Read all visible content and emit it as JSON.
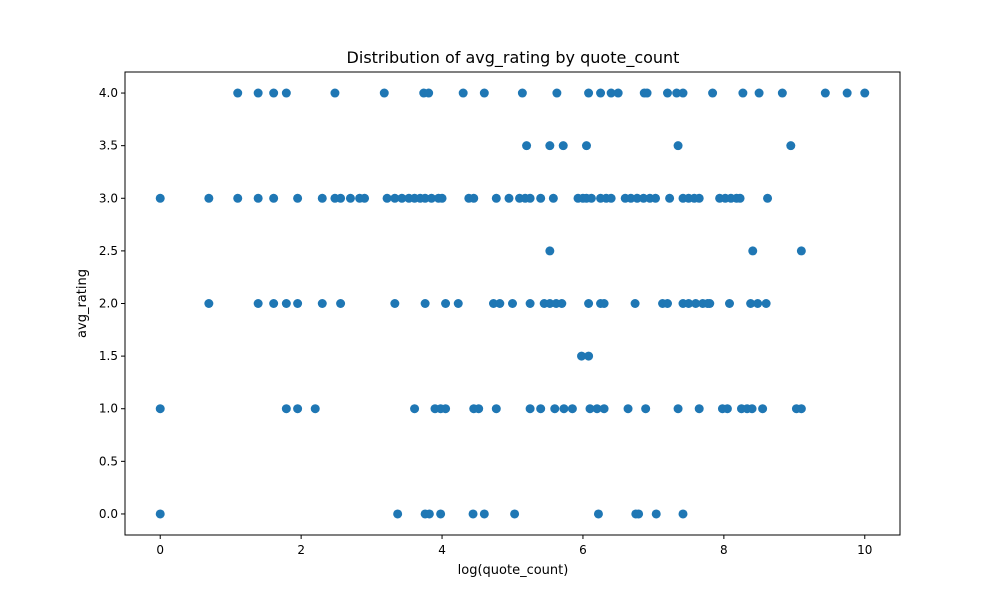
{
  "chart_data": {
    "type": "scatter",
    "title": "Distribution of avg_rating by quote_count",
    "xlabel": "log(quote_count)",
    "ylabel": "avg_rating",
    "xlim": [
      -0.5,
      10.5
    ],
    "ylim": [
      -0.2,
      4.2
    ],
    "x_ticks": [
      0,
      2,
      4,
      6,
      8,
      10
    ],
    "x_tick_labels": [
      "0",
      "2",
      "4",
      "6",
      "8",
      "10"
    ],
    "y_ticks": [
      0.0,
      0.5,
      1.0,
      1.5,
      2.0,
      2.5,
      3.0,
      3.5,
      4.0
    ],
    "y_tick_labels": [
      "0.0",
      "0.5",
      "1.0",
      "1.5",
      "2.0",
      "2.5",
      "3.0",
      "3.5",
      "4.0"
    ],
    "grid": false,
    "marker_color": "#1f77b4",
    "points": [
      [
        1.1,
        4
      ],
      [
        1.39,
        4
      ],
      [
        1.61,
        4
      ],
      [
        1.79,
        4
      ],
      [
        2.48,
        4
      ],
      [
        3.18,
        4
      ],
      [
        3.74,
        4
      ],
      [
        3.81,
        4
      ],
      [
        4.3,
        4
      ],
      [
        4.6,
        4
      ],
      [
        5.14,
        4
      ],
      [
        5.63,
        4
      ],
      [
        6.08,
        4
      ],
      [
        6.25,
        4
      ],
      [
        6.4,
        4
      ],
      [
        6.5,
        4
      ],
      [
        6.87,
        4
      ],
      [
        6.91,
        4
      ],
      [
        7.2,
        4
      ],
      [
        7.33,
        4
      ],
      [
        7.42,
        4
      ],
      [
        7.84,
        4
      ],
      [
        8.27,
        4
      ],
      [
        8.5,
        4
      ],
      [
        8.83,
        4
      ],
      [
        9.44,
        4
      ],
      [
        9.75,
        4
      ],
      [
        10.0,
        4
      ],
      [
        5.2,
        3.5
      ],
      [
        5.53,
        3.5
      ],
      [
        5.72,
        3.5
      ],
      [
        6.05,
        3.5
      ],
      [
        7.35,
        3.5
      ],
      [
        8.95,
        3.5
      ],
      [
        0,
        3
      ],
      [
        0.69,
        3
      ],
      [
        1.1,
        3
      ],
      [
        1.39,
        3
      ],
      [
        1.61,
        3
      ],
      [
        1.95,
        3
      ],
      [
        2.3,
        3
      ],
      [
        2.48,
        3
      ],
      [
        2.56,
        3
      ],
      [
        2.7,
        3
      ],
      [
        2.83,
        3
      ],
      [
        2.9,
        3
      ],
      [
        3.22,
        3
      ],
      [
        3.33,
        3
      ],
      [
        3.43,
        3
      ],
      [
        3.53,
        3
      ],
      [
        3.61,
        3
      ],
      [
        3.69,
        3
      ],
      [
        3.76,
        3
      ],
      [
        3.85,
        3
      ],
      [
        3.95,
        3
      ],
      [
        4.0,
        3
      ],
      [
        4.38,
        3
      ],
      [
        4.45,
        3
      ],
      [
        4.77,
        3
      ],
      [
        4.95,
        3
      ],
      [
        5.1,
        3
      ],
      [
        5.18,
        3
      ],
      [
        5.25,
        3
      ],
      [
        5.4,
        3
      ],
      [
        5.58,
        3
      ],
      [
        5.93,
        3
      ],
      [
        6.0,
        3
      ],
      [
        6.05,
        3
      ],
      [
        6.12,
        3
      ],
      [
        6.25,
        3
      ],
      [
        6.33,
        3
      ],
      [
        6.4,
        3
      ],
      [
        6.6,
        3
      ],
      [
        6.68,
        3
      ],
      [
        6.77,
        3
      ],
      [
        6.86,
        3
      ],
      [
        6.95,
        3
      ],
      [
        7.03,
        3
      ],
      [
        7.23,
        3
      ],
      [
        7.42,
        3
      ],
      [
        7.5,
        3
      ],
      [
        7.58,
        3
      ],
      [
        7.65,
        3
      ],
      [
        7.94,
        3
      ],
      [
        8.02,
        3
      ],
      [
        8.1,
        3
      ],
      [
        8.18,
        3
      ],
      [
        8.23,
        3
      ],
      [
        8.62,
        3
      ],
      [
        5.53,
        2.5
      ],
      [
        8.41,
        2.5
      ],
      [
        9.1,
        2.5
      ],
      [
        0.69,
        2
      ],
      [
        1.39,
        2
      ],
      [
        1.61,
        2
      ],
      [
        1.79,
        2
      ],
      [
        1.95,
        2
      ],
      [
        2.3,
        2
      ],
      [
        2.56,
        2
      ],
      [
        3.33,
        2
      ],
      [
        3.76,
        2
      ],
      [
        4.05,
        2
      ],
      [
        4.23,
        2
      ],
      [
        4.73,
        2
      ],
      [
        4.82,
        2
      ],
      [
        5.0,
        2
      ],
      [
        5.25,
        2
      ],
      [
        5.45,
        2
      ],
      [
        5.53,
        2
      ],
      [
        5.62,
        2
      ],
      [
        5.7,
        2
      ],
      [
        6.08,
        2
      ],
      [
        6.25,
        2
      ],
      [
        6.3,
        2
      ],
      [
        6.74,
        2
      ],
      [
        7.13,
        2
      ],
      [
        7.2,
        2
      ],
      [
        7.42,
        2
      ],
      [
        7.5,
        2
      ],
      [
        7.6,
        2
      ],
      [
        7.7,
        2
      ],
      [
        7.77,
        2
      ],
      [
        7.8,
        2
      ],
      [
        8.08,
        2
      ],
      [
        8.38,
        2
      ],
      [
        8.48,
        2
      ],
      [
        8.6,
        2
      ],
      [
        5.98,
        1.5
      ],
      [
        6.08,
        1.5
      ],
      [
        0,
        1
      ],
      [
        1.79,
        1
      ],
      [
        1.95,
        1
      ],
      [
        2.2,
        1
      ],
      [
        3.61,
        1
      ],
      [
        3.9,
        1
      ],
      [
        3.98,
        1
      ],
      [
        4.05,
        1
      ],
      [
        4.45,
        1
      ],
      [
        4.52,
        1
      ],
      [
        4.77,
        1
      ],
      [
        5.25,
        1
      ],
      [
        5.4,
        1
      ],
      [
        5.6,
        1
      ],
      [
        5.73,
        1
      ],
      [
        5.85,
        1
      ],
      [
        6.1,
        1
      ],
      [
        6.2,
        1
      ],
      [
        6.3,
        1
      ],
      [
        6.64,
        1
      ],
      [
        6.89,
        1
      ],
      [
        7.35,
        1
      ],
      [
        7.65,
        1
      ],
      [
        7.98,
        1
      ],
      [
        8.05,
        1
      ],
      [
        8.25,
        1
      ],
      [
        8.33,
        1
      ],
      [
        8.4,
        1
      ],
      [
        8.55,
        1
      ],
      [
        9.03,
        1
      ],
      [
        9.1,
        1
      ],
      [
        0,
        0
      ],
      [
        3.37,
        0
      ],
      [
        3.76,
        0
      ],
      [
        3.82,
        0
      ],
      [
        3.98,
        0
      ],
      [
        4.44,
        0
      ],
      [
        4.6,
        0
      ],
      [
        5.03,
        0
      ],
      [
        6.22,
        0
      ],
      [
        6.75,
        0
      ],
      [
        6.79,
        0
      ],
      [
        7.04,
        0
      ],
      [
        7.42,
        0
      ]
    ]
  }
}
